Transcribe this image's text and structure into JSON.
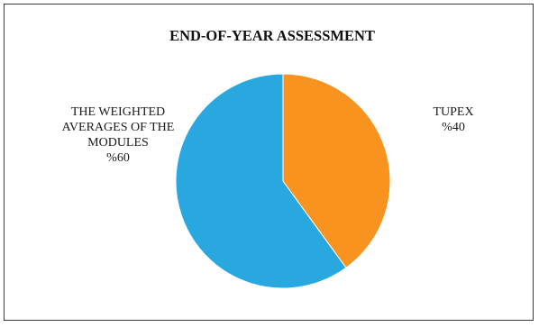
{
  "chart_data": {
    "type": "pie",
    "title": "END-OF-YEAR ASSESSMENT",
    "start_angle_deg": 0,
    "direction": "clockwise",
    "slices": [
      {
        "label_lines": [
          "TUPEX",
          "%40"
        ],
        "value": 40,
        "color": "#f7931e"
      },
      {
        "label_lines": [
          "THE WEIGHTED",
          "AVERAGES OF THE",
          "MODULES",
          "%60"
        ],
        "value": 60,
        "color": "#29a8e0"
      }
    ],
    "legend": "none"
  }
}
